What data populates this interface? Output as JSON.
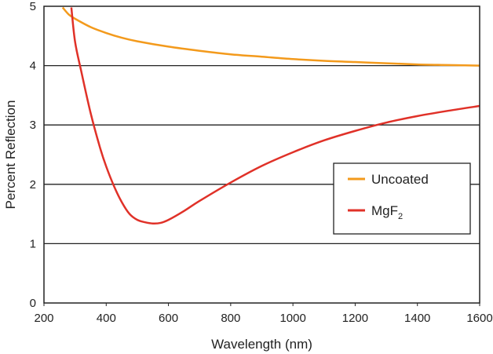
{
  "chart_data": {
    "type": "line",
    "xlabel": "Wavelength (nm)",
    "ylabel": "Percent Reflection",
    "xlim": [
      200,
      1600
    ],
    "ylim": [
      0,
      5
    ],
    "x_ticks": [
      "200",
      "400",
      "600",
      "800",
      "1000",
      "1200",
      "1400",
      "1600"
    ],
    "y_ticks": [
      "0",
      "1",
      "2",
      "3",
      "4",
      "5"
    ],
    "grid": "horizontal",
    "legend_position": "right",
    "series": [
      {
        "name": "Uncoated",
        "sub": "",
        "color": "#f39a1c",
        "x": [
          260,
          280,
          300,
          350,
          400,
          450,
          500,
          600,
          700,
          800,
          900,
          1000,
          1100,
          1200,
          1300,
          1400,
          1500,
          1600
        ],
        "y": [
          4.98,
          4.86,
          4.79,
          4.65,
          4.55,
          4.47,
          4.41,
          4.32,
          4.25,
          4.19,
          4.15,
          4.11,
          4.08,
          4.06,
          4.04,
          4.02,
          4.01,
          4.0
        ]
      },
      {
        "name": "MgF",
        "sub": "2",
        "color": "#e03128",
        "x": [
          288,
          300,
          320,
          350,
          380,
          400,
          425,
          450,
          475,
          500,
          525,
          550,
          575,
          600,
          650,
          700,
          800,
          900,
          1000,
          1100,
          1200,
          1300,
          1400,
          1500,
          1600
        ],
        "y": [
          4.98,
          4.4,
          3.9,
          3.2,
          2.62,
          2.3,
          1.97,
          1.7,
          1.5,
          1.4,
          1.36,
          1.34,
          1.35,
          1.4,
          1.55,
          1.72,
          2.03,
          2.31,
          2.54,
          2.74,
          2.9,
          3.04,
          3.15,
          3.24,
          3.32
        ]
      }
    ]
  }
}
